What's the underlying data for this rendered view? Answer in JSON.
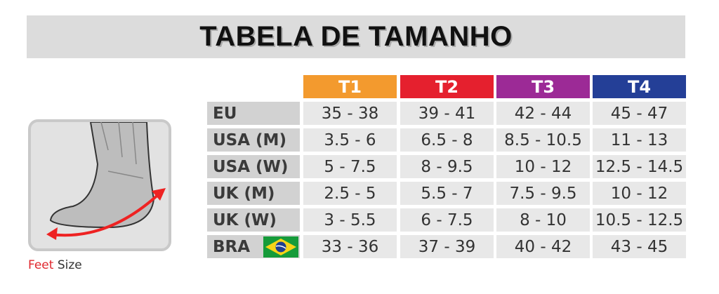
{
  "header": {
    "title": "TABELA DE TAMANHO"
  },
  "table": {
    "columns": [
      {
        "label": "T1",
        "color": "#f39a2e"
      },
      {
        "label": "T2",
        "color": "#e5202e"
      },
      {
        "label": "T3",
        "color": "#9c2a96"
      },
      {
        "label": "T4",
        "color": "#243f97"
      }
    ],
    "rows": [
      {
        "label": "EU",
        "cells": [
          "35 - 38",
          "39 - 41",
          "42 - 44",
          "45 - 47"
        ]
      },
      {
        "label": "USA (M)",
        "cells": [
          "3.5 - 6",
          "6.5 - 8",
          "8.5 - 10.5",
          "11 - 13"
        ]
      },
      {
        "label": "USA (W)",
        "cells": [
          "5 - 7.5",
          "8 - 9.5",
          "10 - 12",
          "12.5 - 14.5"
        ]
      },
      {
        "label": "UK (M)",
        "cells": [
          "2.5 - 5",
          "5.5 - 7",
          "7.5 - 9.5",
          "10 - 12"
        ]
      },
      {
        "label": "UK (W)",
        "cells": [
          "3 - 5.5",
          "6 - 7.5",
          "8 - 10",
          "10.5 - 12.5"
        ]
      },
      {
        "label": "BRA",
        "cells": [
          "33 - 36",
          "37 - 39",
          "40 - 42",
          "43 - 45"
        ]
      }
    ]
  },
  "caption": [
    "Feet",
    "Size"
  ]
}
